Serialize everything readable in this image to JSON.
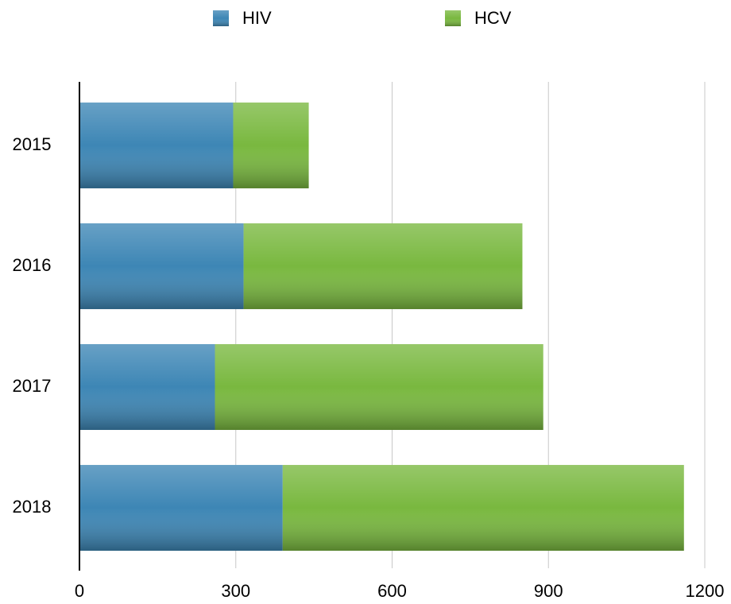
{
  "chart_data": {
    "type": "stacked-bar-horizontal",
    "categories": [
      "2015",
      "2016",
      "2017",
      "2018"
    ],
    "series": [
      {
        "name": "HIV",
        "color": "#3d86b5",
        "values": [
          295,
          315,
          260,
          390
        ]
      },
      {
        "name": "HCV",
        "color": "#79b83f",
        "values": [
          145,
          535,
          630,
          770
        ]
      }
    ],
    "xlim": [
      0,
      1200
    ],
    "xticks": [
      0,
      300,
      600,
      900,
      1200
    ],
    "grid": true,
    "legend": "top"
  }
}
